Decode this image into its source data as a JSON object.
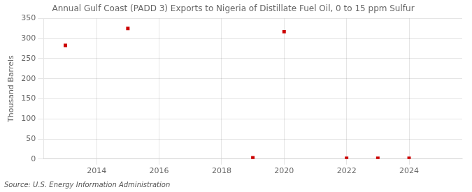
{
  "chart_data": {
    "type": "scatter",
    "title": "Annual Gulf Coast (PADD 3) Exports to Nigeria of Distillate Fuel Oil, 0 to 15 ppm Sulfur",
    "ylabel": "Thousand Barrels",
    "source": "Source: U.S. Energy Information Administration",
    "x": [
      2013,
      2015,
      2019,
      2020,
      2022,
      2023,
      2024
    ],
    "values": [
      283,
      325,
      3,
      317,
      2,
      2,
      2
    ],
    "color": "#cc0000",
    "marker": "square",
    "xlim": [
      2012.3,
      2025.7
    ],
    "ylim": [
      0,
      350
    ],
    "xticks": [
      2014,
      2016,
      2018,
      2020,
      2022,
      2024
    ],
    "yticks": [
      0,
      50,
      100,
      150,
      200,
      250,
      300,
      350
    ],
    "grid": true
  }
}
